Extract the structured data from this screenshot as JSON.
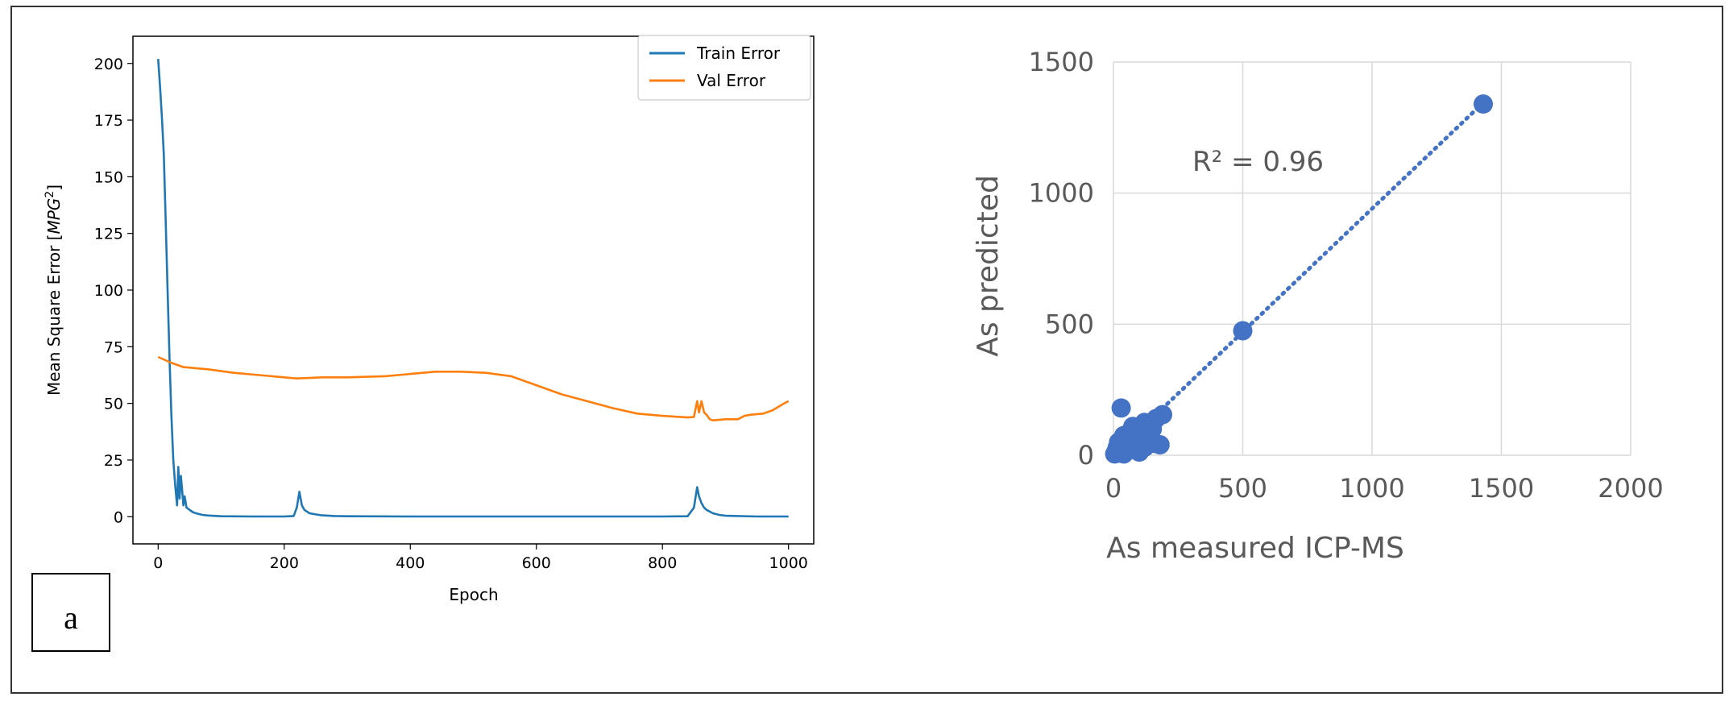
{
  "chart_data": [
    {
      "type": "line",
      "title": "",
      "xlabel": "Epoch",
      "ylabel": "Mean Square Error [MPG²]",
      "ylabel_parts": {
        "main": "Mean Square Error [",
        "unit": "MPG",
        "exp": "2",
        "close": "]"
      },
      "xlim": [
        -40,
        1040
      ],
      "ylim": [
        -12,
        212
      ],
      "x_ticks": [
        0,
        200,
        400,
        600,
        800,
        1000
      ],
      "y_ticks": [
        0,
        25,
        50,
        75,
        100,
        125,
        150,
        175,
        200
      ],
      "grid": false,
      "legend_position": "top-right",
      "panel_label": "a",
      "series": [
        {
          "name": "Train Error",
          "color": "#1f77b4",
          "x": [
            0,
            3,
            6,
            9,
            12,
            15,
            18,
            21,
            24,
            27,
            30,
            32,
            34,
            36,
            38,
            40,
            42,
            45,
            50,
            55,
            60,
            70,
            80,
            100,
            150,
            200,
            215,
            220,
            224,
            228,
            232,
            240,
            250,
            260,
            280,
            300,
            400,
            500,
            600,
            700,
            800,
            840,
            850,
            855,
            858,
            862,
            866,
            870,
            880,
            890,
            900,
            950,
            1000
          ],
          "y": [
            202,
            190,
            176,
            160,
            130,
            100,
            70,
            45,
            25,
            14,
            5,
            22,
            8,
            18,
            12,
            5,
            9,
            4,
            3,
            2,
            1.5,
            0.8,
            0.5,
            0.2,
            0.1,
            0.1,
            0.3,
            4,
            11,
            5,
            3,
            1.5,
            1,
            0.6,
            0.3,
            0.2,
            0.1,
            0.1,
            0.1,
            0.1,
            0.1,
            0.2,
            4,
            13,
            9,
            6,
            4,
            3,
            1.5,
            0.8,
            0.4,
            0.1,
            0.1
          ]
        },
        {
          "name": "Val Error",
          "color": "#ff7f0e",
          "x": [
            0,
            20,
            40,
            80,
            120,
            160,
            200,
            220,
            260,
            300,
            360,
            400,
            440,
            480,
            520,
            560,
            600,
            640,
            680,
            720,
            760,
            800,
            840,
            850,
            855,
            858,
            862,
            866,
            870,
            875,
            880,
            900,
            920,
            930,
            940,
            960,
            975,
            990,
            1000
          ],
          "y": [
            70.5,
            68,
            66,
            65,
            63.5,
            62.5,
            61.5,
            61,
            61.5,
            61.5,
            62,
            63,
            64,
            64,
            63.5,
            62,
            58,
            54,
            51,
            48,
            45.5,
            44.5,
            43.8,
            44,
            51,
            46,
            51,
            46,
            45,
            43,
            42.5,
            43,
            43,
            44.5,
            45,
            45.5,
            47,
            49.5,
            51
          ]
        }
      ]
    },
    {
      "type": "scatter",
      "title": "",
      "xlabel": "As measured ICP-MS",
      "ylabel": "As predicted",
      "xlim": [
        0,
        2000
      ],
      "ylim": [
        0,
        1500
      ],
      "x_ticks": [
        0,
        500,
        1000,
        1500,
        2000
      ],
      "y_ticks": [
        0,
        500,
        1000,
        1500
      ],
      "grid": true,
      "annotation": "R² = 0.96",
      "marker_color": "#4472c4",
      "trendline": {
        "style": "dotted",
        "x": [
          5,
          1430
        ],
        "y": [
          5,
          1345
        ]
      },
      "points": [
        [
          1430,
          1340
        ],
        [
          500,
          475
        ],
        [
          30,
          180
        ],
        [
          190,
          155
        ],
        [
          165,
          140
        ],
        [
          120,
          125
        ],
        [
          100,
          100
        ],
        [
          150,
          100
        ],
        [
          130,
          90
        ],
        [
          60,
          85
        ],
        [
          40,
          75
        ],
        [
          90,
          70
        ],
        [
          110,
          60
        ],
        [
          70,
          55
        ],
        [
          20,
          50
        ],
        [
          160,
          45
        ],
        [
          180,
          40
        ],
        [
          80,
          40
        ],
        [
          50,
          35
        ],
        [
          120,
          30
        ],
        [
          30,
          25
        ],
        [
          60,
          20
        ],
        [
          10,
          15
        ],
        [
          100,
          12
        ],
        [
          20,
          8
        ],
        [
          40,
          5
        ],
        [
          5,
          5
        ],
        [
          15,
          30
        ],
        [
          140,
          70
        ],
        [
          75,
          110
        ]
      ]
    }
  ]
}
